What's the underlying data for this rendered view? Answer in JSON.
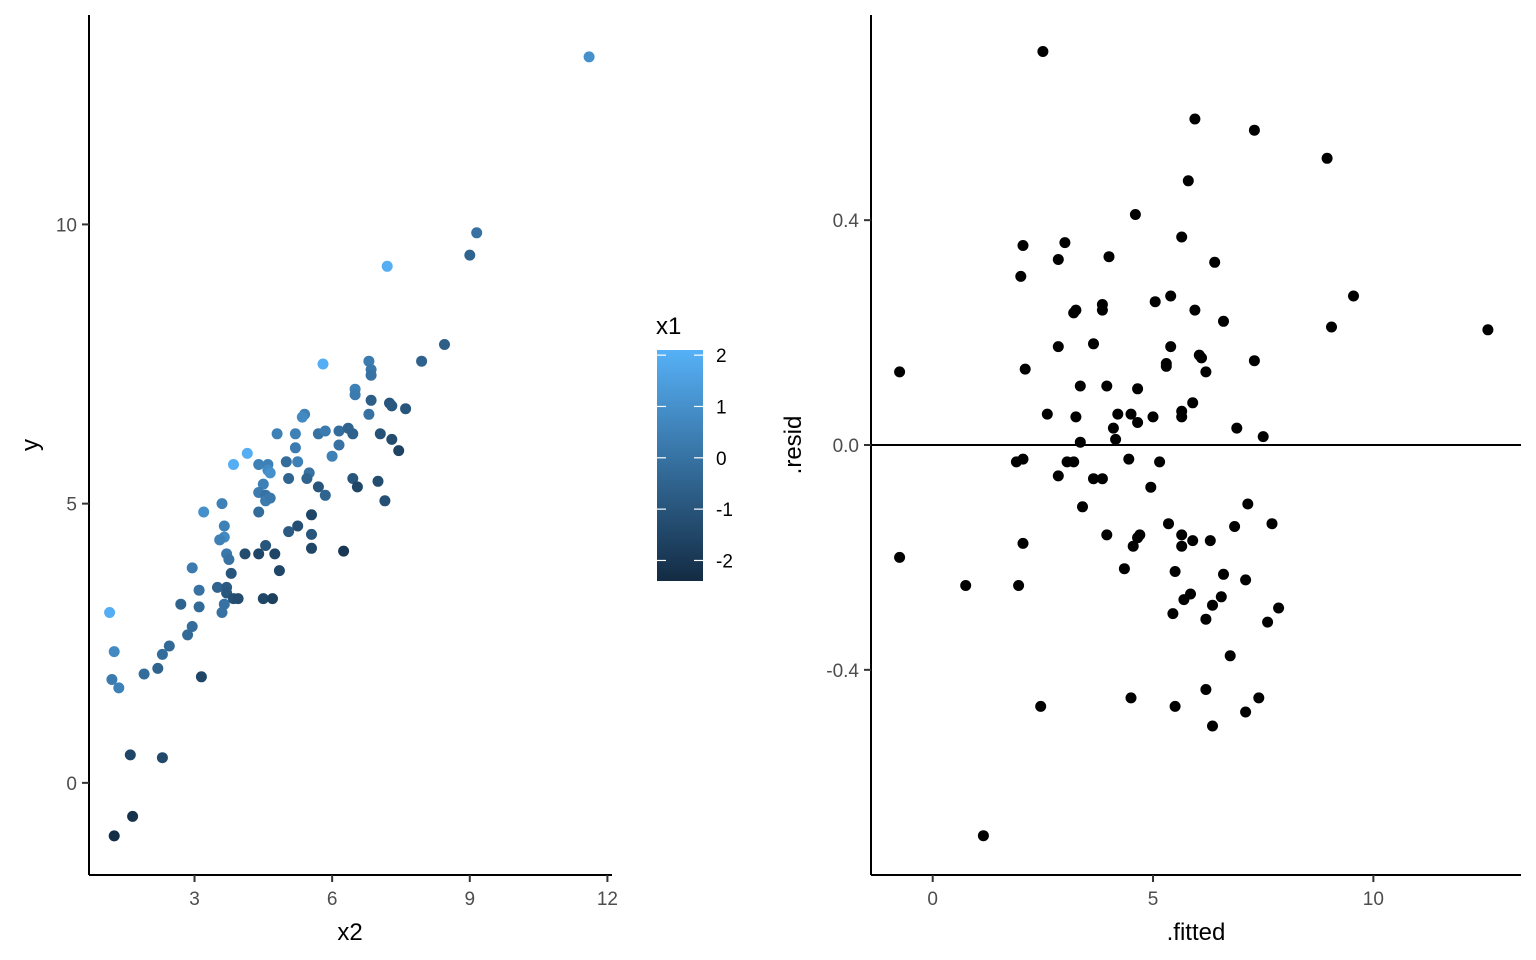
{
  "colors": {
    "low": "#132B43",
    "high": "#56B1F7",
    "resid_point": "#000000",
    "axis": "#000000",
    "tick_text": "#4d4d4d"
  },
  "chart_data": [
    {
      "type": "scatter",
      "xlabel": "x2",
      "ylabel": "y",
      "xlim": [
        0.7,
        12.1
      ],
      "ylim": [
        -1.65,
        13.75
      ],
      "xticks": [
        3,
        6,
        9,
        12
      ],
      "yticks": [
        0,
        5,
        10
      ],
      "color_by": "x1",
      "legend": {
        "title": "x1",
        "placement": "right",
        "range": [
          -2.4,
          2.1
        ],
        "ticks": [
          2,
          1,
          0,
          -1,
          -2
        ],
        "tick_labels": [
          "2",
          "1",
          "0",
          "-1",
          "-2"
        ]
      },
      "points": [
        {
          "x": 11.6,
          "y": 13.0,
          "c": 1.0
        },
        {
          "x": 9.15,
          "y": 9.85,
          "c": 0.0
        },
        {
          "x": 9.0,
          "y": 9.45,
          "c": -0.5
        },
        {
          "x": 7.2,
          "y": 9.25,
          "c": 2.0
        },
        {
          "x": 8.45,
          "y": 7.85,
          "c": -0.7
        },
        {
          "x": 7.95,
          "y": 7.55,
          "c": -0.6
        },
        {
          "x": 6.8,
          "y": 7.55,
          "c": 0.3
        },
        {
          "x": 5.8,
          "y": 7.5,
          "c": 2.0
        },
        {
          "x": 6.85,
          "y": 7.4,
          "c": 0.2
        },
        {
          "x": 6.85,
          "y": 7.3,
          "c": 0.0
        },
        {
          "x": 6.5,
          "y": 7.05,
          "c": 0.5
        },
        {
          "x": 6.5,
          "y": 6.95,
          "c": 0.3
        },
        {
          "x": 6.85,
          "y": 6.85,
          "c": -0.7
        },
        {
          "x": 7.25,
          "y": 6.8,
          "c": -1.0
        },
        {
          "x": 7.3,
          "y": 6.75,
          "c": -0.9
        },
        {
          "x": 7.6,
          "y": 6.7,
          "c": -1.0
        },
        {
          "x": 6.8,
          "y": 6.6,
          "c": 0.0
        },
        {
          "x": 5.4,
          "y": 6.6,
          "c": 0.5
        },
        {
          "x": 5.35,
          "y": 6.55,
          "c": 0.8
        },
        {
          "x": 5.2,
          "y": 6.25,
          "c": 0.5
        },
        {
          "x": 4.8,
          "y": 6.25,
          "c": 0.5
        },
        {
          "x": 5.7,
          "y": 6.25,
          "c": 0.0
        },
        {
          "x": 5.85,
          "y": 6.3,
          "c": 0.3
        },
        {
          "x": 6.15,
          "y": 6.3,
          "c": -0.2
        },
        {
          "x": 6.35,
          "y": 6.35,
          "c": -0.5
        },
        {
          "x": 6.45,
          "y": 6.25,
          "c": -0.6
        },
        {
          "x": 7.05,
          "y": 6.25,
          "c": -1.1
        },
        {
          "x": 7.3,
          "y": 6.15,
          "c": -1.3
        },
        {
          "x": 7.45,
          "y": 5.95,
          "c": -1.6
        },
        {
          "x": 6.15,
          "y": 6.05,
          "c": 0.0
        },
        {
          "x": 5.2,
          "y": 6.0,
          "c": 0.3
        },
        {
          "x": 6.0,
          "y": 5.85,
          "c": 0.5
        },
        {
          "x": 4.15,
          "y": 5.9,
          "c": 2.0
        },
        {
          "x": 3.85,
          "y": 5.7,
          "c": 2.0
        },
        {
          "x": 4.4,
          "y": 5.7,
          "c": 0.5
        },
        {
          "x": 4.6,
          "y": 5.7,
          "c": 0.5
        },
        {
          "x": 4.6,
          "y": 5.6,
          "c": 0.8
        },
        {
          "x": 4.65,
          "y": 5.55,
          "c": 1.0
        },
        {
          "x": 5.0,
          "y": 5.75,
          "c": -0.2
        },
        {
          "x": 5.25,
          "y": 5.75,
          "c": 0.5
        },
        {
          "x": 5.5,
          "y": 5.55,
          "c": 0.0
        },
        {
          "x": 5.45,
          "y": 5.45,
          "c": -0.5
        },
        {
          "x": 5.05,
          "y": 5.45,
          "c": -0.5
        },
        {
          "x": 4.5,
          "y": 5.35,
          "c": 0.5
        },
        {
          "x": 4.4,
          "y": 5.2,
          "c": 0.3
        },
        {
          "x": 4.55,
          "y": 5.15,
          "c": 0.0
        },
        {
          "x": 5.7,
          "y": 5.3,
          "c": -1.0
        },
        {
          "x": 5.85,
          "y": 5.15,
          "c": -0.5
        },
        {
          "x": 6.45,
          "y": 5.45,
          "c": -1.0
        },
        {
          "x": 6.55,
          "y": 5.3,
          "c": -1.5
        },
        {
          "x": 7.0,
          "y": 5.4,
          "c": -1.3
        },
        {
          "x": 7.15,
          "y": 5.05,
          "c": -1.2
        },
        {
          "x": 4.55,
          "y": 5.05,
          "c": 0.3
        },
        {
          "x": 4.65,
          "y": 5.1,
          "c": 0.2
        },
        {
          "x": 4.4,
          "y": 4.85,
          "c": -0.2
        },
        {
          "x": 3.6,
          "y": 5.0,
          "c": 0.5
        },
        {
          "x": 3.2,
          "y": 4.85,
          "c": 1.0
        },
        {
          "x": 5.55,
          "y": 4.8,
          "c": -1.5
        },
        {
          "x": 5.05,
          "y": 4.5,
          "c": -0.8
        },
        {
          "x": 5.25,
          "y": 4.6,
          "c": -1.2
        },
        {
          "x": 3.65,
          "y": 4.6,
          "c": 0.5
        },
        {
          "x": 3.65,
          "y": 4.4,
          "c": 0.8
        },
        {
          "x": 3.55,
          "y": 4.35,
          "c": 0.5
        },
        {
          "x": 3.7,
          "y": 4.1,
          "c": 0.2
        },
        {
          "x": 3.75,
          "y": 4.0,
          "c": 0.0
        },
        {
          "x": 4.1,
          "y": 4.1,
          "c": -1.3
        },
        {
          "x": 4.4,
          "y": 4.1,
          "c": -1.5
        },
        {
          "x": 4.55,
          "y": 4.25,
          "c": -1.0
        },
        {
          "x": 4.75,
          "y": 4.1,
          "c": -1.5
        },
        {
          "x": 5.55,
          "y": 4.45,
          "c": -1.0
        },
        {
          "x": 5.55,
          "y": 4.2,
          "c": -1.5
        },
        {
          "x": 6.25,
          "y": 4.15,
          "c": -2.0
        },
        {
          "x": 2.95,
          "y": 3.85,
          "c": 0.3
        },
        {
          "x": 3.8,
          "y": 3.75,
          "c": -1.0
        },
        {
          "x": 4.85,
          "y": 3.8,
          "c": -1.5
        },
        {
          "x": 3.1,
          "y": 3.45,
          "c": 0.0
        },
        {
          "x": 3.5,
          "y": 3.5,
          "c": -0.5
        },
        {
          "x": 3.7,
          "y": 3.5,
          "c": -0.8
        },
        {
          "x": 3.7,
          "y": 3.4,
          "c": -0.9
        },
        {
          "x": 2.7,
          "y": 3.2,
          "c": -0.5
        },
        {
          "x": 3.1,
          "y": 3.15,
          "c": -0.3
        },
        {
          "x": 3.65,
          "y": 3.2,
          "c": 0.0
        },
        {
          "x": 3.85,
          "y": 3.3,
          "c": -1.2
        },
        {
          "x": 3.95,
          "y": 3.3,
          "c": -1.3
        },
        {
          "x": 4.5,
          "y": 3.3,
          "c": -1.5
        },
        {
          "x": 4.7,
          "y": 3.3,
          "c": -1.7
        },
        {
          "x": 3.6,
          "y": 3.05,
          "c": 0.0
        },
        {
          "x": 1.15,
          "y": 3.05,
          "c": 2.0
        },
        {
          "x": 2.95,
          "y": 2.8,
          "c": -0.2
        },
        {
          "x": 2.85,
          "y": 2.65,
          "c": -0.3
        },
        {
          "x": 2.45,
          "y": 2.45,
          "c": -0.3
        },
        {
          "x": 1.25,
          "y": 2.35,
          "c": 0.8
        },
        {
          "x": 2.3,
          "y": 2.3,
          "c": -0.2
        },
        {
          "x": 2.2,
          "y": 2.05,
          "c": -0.5
        },
        {
          "x": 1.9,
          "y": 1.95,
          "c": -0.2
        },
        {
          "x": 1.2,
          "y": 1.85,
          "c": 0.3
        },
        {
          "x": 1.35,
          "y": 1.7,
          "c": 0.5
        },
        {
          "x": 3.15,
          "y": 1.9,
          "c": -1.5
        },
        {
          "x": 1.6,
          "y": 0.5,
          "c": -1.5
        },
        {
          "x": 2.3,
          "y": 0.45,
          "c": -1.4
        },
        {
          "x": 1.65,
          "y": -0.6,
          "c": -2.2
        },
        {
          "x": 1.25,
          "y": -0.95,
          "c": -2.3
        }
      ]
    },
    {
      "type": "scatter",
      "xlabel": ".fitted",
      "ylabel": ".resid",
      "xlim": [
        -1.4,
        13.35
      ],
      "ylim": [
        -0.765,
        0.765
      ],
      "xticks": [
        0,
        5,
        10
      ],
      "yticks": [
        -0.4,
        0.0,
        0.4
      ],
      "ytick_labels": [
        "-0.4",
        "0.0",
        "0.4"
      ],
      "hline": 0,
      "points": [
        {
          "x": 2.5,
          "y": 0.7
        },
        {
          "x": 5.95,
          "y": 0.58
        },
        {
          "x": 7.3,
          "y": 0.56
        },
        {
          "x": 8.95,
          "y": 0.51
        },
        {
          "x": 5.8,
          "y": 0.47
        },
        {
          "x": 4.6,
          "y": 0.41
        },
        {
          "x": 5.65,
          "y": 0.37
        },
        {
          "x": 2.05,
          "y": 0.355
        },
        {
          "x": 3.0,
          "y": 0.36
        },
        {
          "x": 2.85,
          "y": 0.33
        },
        {
          "x": 4.0,
          "y": 0.335
        },
        {
          "x": 6.4,
          "y": 0.325
        },
        {
          "x": 2.0,
          "y": 0.3
        },
        {
          "x": 5.4,
          "y": 0.265
        },
        {
          "x": 5.05,
          "y": 0.255
        },
        {
          "x": 9.55,
          "y": 0.265
        },
        {
          "x": 3.85,
          "y": 0.25
        },
        {
          "x": 3.85,
          "y": 0.24
        },
        {
          "x": 3.25,
          "y": 0.24
        },
        {
          "x": 3.2,
          "y": 0.235
        },
        {
          "x": 5.95,
          "y": 0.24
        },
        {
          "x": 6.6,
          "y": 0.22
        },
        {
          "x": 9.05,
          "y": 0.21
        },
        {
          "x": 12.6,
          "y": 0.205
        },
        {
          "x": 3.65,
          "y": 0.18
        },
        {
          "x": 2.85,
          "y": 0.175
        },
        {
          "x": 5.4,
          "y": 0.175
        },
        {
          "x": 6.05,
          "y": 0.16
        },
        {
          "x": 6.1,
          "y": 0.155
        },
        {
          "x": 5.3,
          "y": 0.145
        },
        {
          "x": 5.3,
          "y": 0.14
        },
        {
          "x": 7.3,
          "y": 0.15
        },
        {
          "x": 2.1,
          "y": 0.135
        },
        {
          "x": 6.2,
          "y": 0.13
        },
        {
          "x": -0.75,
          "y": 0.13
        },
        {
          "x": 3.35,
          "y": 0.105
        },
        {
          "x": 3.95,
          "y": 0.105
        },
        {
          "x": 4.65,
          "y": 0.1
        },
        {
          "x": 5.9,
          "y": 0.075
        },
        {
          "x": 5.65,
          "y": 0.06
        },
        {
          "x": 5.65,
          "y": 0.05
        },
        {
          "x": 2.6,
          "y": 0.055
        },
        {
          "x": 3.25,
          "y": 0.05
        },
        {
          "x": 4.2,
          "y": 0.055
        },
        {
          "x": 4.5,
          "y": 0.055
        },
        {
          "x": 5.0,
          "y": 0.05
        },
        {
          "x": 4.65,
          "y": 0.04
        },
        {
          "x": 4.1,
          "y": 0.03
        },
        {
          "x": 6.9,
          "y": 0.03
        },
        {
          "x": 7.5,
          "y": 0.015
        },
        {
          "x": 4.15,
          "y": 0.01
        },
        {
          "x": 3.35,
          "y": 0.005
        },
        {
          "x": 2.05,
          "y": -0.025
        },
        {
          "x": 1.9,
          "y": -0.03
        },
        {
          "x": 3.05,
          "y": -0.03
        },
        {
          "x": 3.2,
          "y": -0.03
        },
        {
          "x": 4.45,
          "y": -0.025
        },
        {
          "x": 5.15,
          "y": -0.03
        },
        {
          "x": 2.85,
          "y": -0.055
        },
        {
          "x": 3.65,
          "y": -0.06
        },
        {
          "x": 3.85,
          "y": -0.06
        },
        {
          "x": 4.95,
          "y": -0.075
        },
        {
          "x": 3.4,
          "y": -0.11
        },
        {
          "x": 7.15,
          "y": -0.105
        },
        {
          "x": 5.35,
          "y": -0.14
        },
        {
          "x": 7.7,
          "y": -0.14
        },
        {
          "x": 6.85,
          "y": -0.145
        },
        {
          "x": 3.95,
          "y": -0.16
        },
        {
          "x": 4.7,
          "y": -0.16
        },
        {
          "x": 5.65,
          "y": -0.16
        },
        {
          "x": 4.65,
          "y": -0.165
        },
        {
          "x": 5.9,
          "y": -0.17
        },
        {
          "x": 6.3,
          "y": -0.17
        },
        {
          "x": 2.05,
          "y": -0.175
        },
        {
          "x": 4.55,
          "y": -0.18
        },
        {
          "x": 5.65,
          "y": -0.18
        },
        {
          "x": -0.75,
          "y": -0.2
        },
        {
          "x": 4.35,
          "y": -0.22
        },
        {
          "x": 5.5,
          "y": -0.225
        },
        {
          "x": 6.6,
          "y": -0.23
        },
        {
          "x": 7.1,
          "y": -0.24
        },
        {
          "x": 0.75,
          "y": -0.25
        },
        {
          "x": 1.95,
          "y": -0.25
        },
        {
          "x": 5.85,
          "y": -0.265
        },
        {
          "x": 6.55,
          "y": -0.27
        },
        {
          "x": 5.7,
          "y": -0.275
        },
        {
          "x": 6.35,
          "y": -0.285
        },
        {
          "x": 7.85,
          "y": -0.29
        },
        {
          "x": 5.45,
          "y": -0.3
        },
        {
          "x": 6.2,
          "y": -0.31
        },
        {
          "x": 7.6,
          "y": -0.315
        },
        {
          "x": 6.75,
          "y": -0.375
        },
        {
          "x": 6.2,
          "y": -0.435
        },
        {
          "x": 4.5,
          "y": -0.45
        },
        {
          "x": 7.4,
          "y": -0.45
        },
        {
          "x": 2.45,
          "y": -0.465
        },
        {
          "x": 5.5,
          "y": -0.465
        },
        {
          "x": 7.1,
          "y": -0.475
        },
        {
          "x": 6.35,
          "y": -0.5
        },
        {
          "x": 1.15,
          "y": -0.695
        }
      ]
    }
  ]
}
